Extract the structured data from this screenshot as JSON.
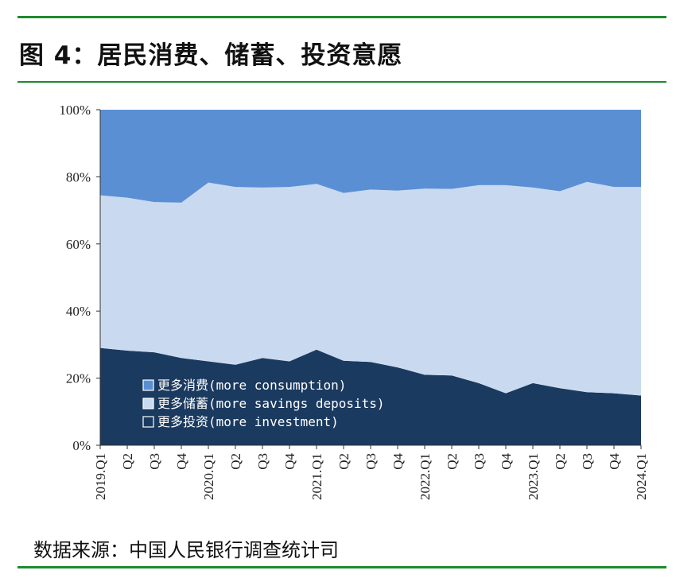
{
  "figure": {
    "title": "图 4：居民消费、储蓄、投资意愿",
    "source": "数据来源：中国人民银行调查统计司"
  },
  "colors": {
    "rule": "#1f8a2f",
    "consumption": "#5b8fd4",
    "savings": "#c9daf0",
    "investment": "#1b3a5f"
  },
  "chart_data": {
    "type": "area",
    "stacked": true,
    "percent": true,
    "x": [
      "2019.Q1",
      "Q2",
      "Q3",
      "Q4",
      "2020.Q1",
      "Q2",
      "Q3",
      "Q4",
      "2021.Q1",
      "Q2",
      "Q3",
      "Q4",
      "2022.Q1",
      "Q2",
      "Q3",
      "Q4",
      "2023.Q1",
      "Q2",
      "Q3",
      "Q4",
      "2024.Q1"
    ],
    "ylim": [
      0,
      100
    ],
    "yticks": [
      "0%",
      "20%",
      "40%",
      "60%",
      "80%",
      "100%"
    ],
    "series": [
      {
        "name": "更多投资(more investment)",
        "color": "#1b3a5f",
        "values": [
          29.0,
          28.2,
          27.7,
          26.0,
          25.0,
          24.0,
          26.0,
          25.0,
          28.5,
          25.2,
          24.8,
          23.2,
          21.0,
          20.8,
          18.5,
          15.5,
          18.5,
          17.0,
          15.8,
          15.5,
          14.8
        ]
      },
      {
        "name": "更多储蓄(more savings deposits)",
        "color": "#c9daf0",
        "values": [
          45.5,
          45.6,
          44.8,
          46.3,
          53.3,
          53.0,
          50.8,
          52.0,
          49.4,
          50.0,
          51.4,
          52.7,
          55.5,
          55.6,
          59.0,
          62.0,
          58.3,
          58.7,
          62.7,
          61.5,
          62.2
        ]
      },
      {
        "name": "更多消费(more consumption)",
        "color": "#5b8fd4",
        "values": [
          25.5,
          26.2,
          27.5,
          27.7,
          21.7,
          23.0,
          23.2,
          23.0,
          22.1,
          24.8,
          23.8,
          24.1,
          23.5,
          23.6,
          22.5,
          22.5,
          23.2,
          24.3,
          21.5,
          23.0,
          23.0
        ]
      }
    ],
    "legend": {
      "placement": "bottom-left-inside",
      "items": [
        "更多消费(more consumption)",
        "更多储蓄(more savings deposits)",
        "更多投资(more investment)"
      ]
    }
  }
}
